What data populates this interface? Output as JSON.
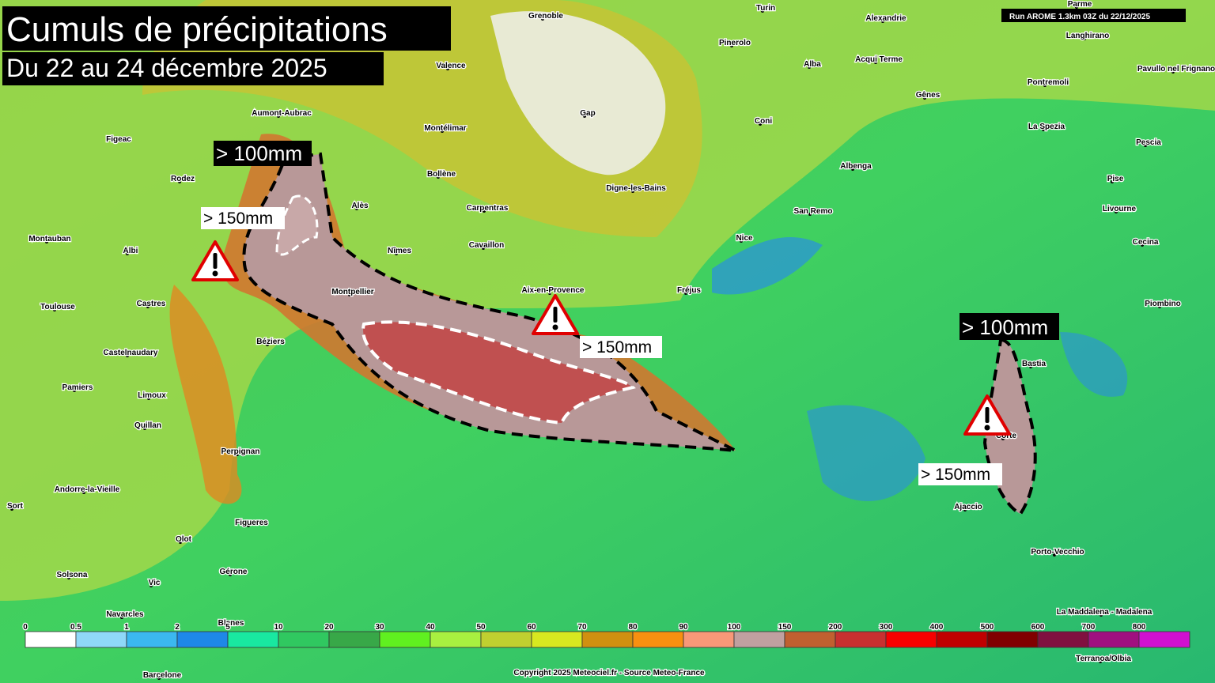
{
  "header": {
    "title": "Cumuls de précipitations",
    "subtitle": "Du 22 au 24 décembre 2025",
    "run": "Run AROME 1.3km 03Z du 22/12/2025"
  },
  "annotations": [
    "> 100mm",
    "> 150mm",
    "> 150mm",
    "> 100mm",
    "> 150mm"
  ],
  "places": [
    "Grenoble",
    "Turin",
    "Parme",
    "Alexandrie",
    "Valence",
    "Aumont-Aubrac",
    "Montélimar",
    "Figeac",
    "Rodez",
    "Bollène",
    "Alès",
    "Carpentras",
    "Montauban",
    "Albi",
    "Nîmes",
    "Cavaillon",
    "Toulouse",
    "Castres",
    "Aix-en-Provence",
    "Béziers",
    "Castelnaudary",
    "Pamiers",
    "Limoux",
    "Quillan",
    "Perpignan",
    "Andorre-la-Vieille",
    "Sort",
    "Figueres",
    "Olot",
    "Solsona",
    "Gérone",
    "Vic",
    "Navarcles",
    "Blanes",
    "Barcelone",
    "Pinerolo",
    "Alba",
    "Acqui Terme",
    "Gap",
    "Coni",
    "Gênes",
    "Langhirano",
    "Pavullo nel Frignano",
    "Pontremoli",
    "La Spezia",
    "Pescia",
    "Albenga",
    "Digne-les-Bains",
    "Pise",
    "San Remo",
    "Livourne",
    "Nice",
    "Cecina",
    "Fréjus",
    "Piombino",
    "Bastia",
    "Corte",
    "Ajaccio",
    "Porto-Vecchio",
    "La Maddalena - Madalena",
    "Terranoa/Olbia",
    "Montpellier"
  ],
  "legend": {
    "ticks": [
      0,
      0.5,
      1,
      2,
      5,
      10,
      20,
      30,
      40,
      50,
      60,
      70,
      80,
      90,
      100,
      150,
      200,
      300,
      400,
      500,
      600,
      700,
      800
    ],
    "colors": [
      "#ffffff",
      "#8fd8f8",
      "#3bb8f0",
      "#1e88e8",
      "#19e8a0",
      "#30c860",
      "#38a848",
      "#60f020",
      "#a8f040",
      "#c0d030",
      "#d8e820",
      "#d09010",
      "#f89010",
      "#f89878",
      "#c0a0a0",
      "#c06030",
      "#c83030",
      "#f80000",
      "#c00000",
      "#800000",
      "#801040",
      "#a01080",
      "#d010d0"
    ]
  },
  "footer": {
    "copyright": "Copyright 2025 Meteociel.fr - Source Meteo-France"
  }
}
